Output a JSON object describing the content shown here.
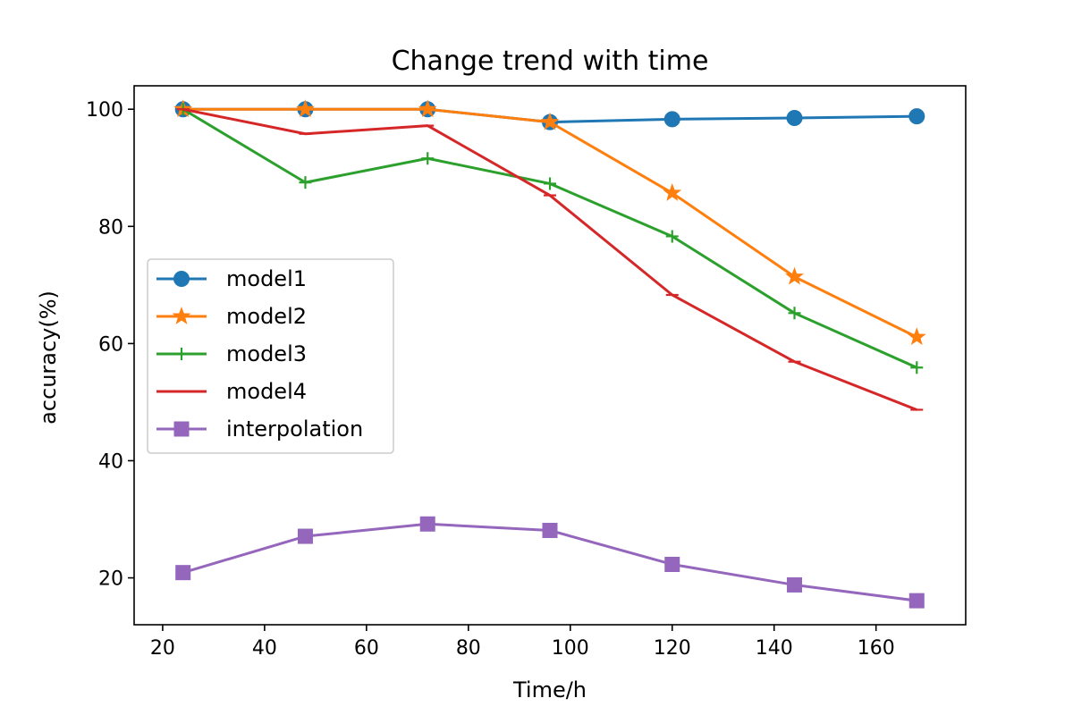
{
  "chart_data": {
    "type": "line",
    "title": "Change trend with time",
    "xlabel": "Time/h",
    "ylabel": "accuracy(%)",
    "x": [
      24,
      48,
      72,
      96,
      120,
      144,
      168
    ],
    "xlim": [
      14.4,
      177.6
    ],
    "ylim": [
      12,
      104
    ],
    "xticks": [
      20,
      40,
      60,
      80,
      100,
      120,
      140,
      160
    ],
    "yticks": [
      20,
      40,
      60,
      80,
      100
    ],
    "xtick_labels": [
      "20",
      "40",
      "60",
      "80",
      "100",
      "120",
      "140",
      "160"
    ],
    "ytick_labels": [
      "20",
      "40",
      "60",
      "80",
      "100"
    ],
    "grid": false,
    "legend_position": "center-left",
    "series": [
      {
        "name": "model1",
        "color": "#1f77b4",
        "marker": "circle",
        "values": [
          100,
          100,
          100,
          97.8,
          98.3,
          98.5,
          98.8
        ]
      },
      {
        "name": "model2",
        "color": "#ff7f0e",
        "marker": "star",
        "values": [
          100,
          100,
          100,
          97.8,
          85.7,
          71.4,
          61.1
        ]
      },
      {
        "name": "model3",
        "color": "#2ca02c",
        "marker": "plus",
        "values": [
          100,
          87.5,
          91.6,
          87.3,
          78.3,
          65.2,
          55.9
        ]
      },
      {
        "name": "model4",
        "color": "#d62728",
        "marker": "hline",
        "values": [
          100,
          95.8,
          97.2,
          85.3,
          68.3,
          56.9,
          48.7
        ]
      },
      {
        "name": "interpolation",
        "color": "#9467bd",
        "marker": "square",
        "values": [
          20.9,
          27.1,
          29.2,
          28.1,
          22.3,
          18.8,
          16.1
        ]
      }
    ]
  }
}
